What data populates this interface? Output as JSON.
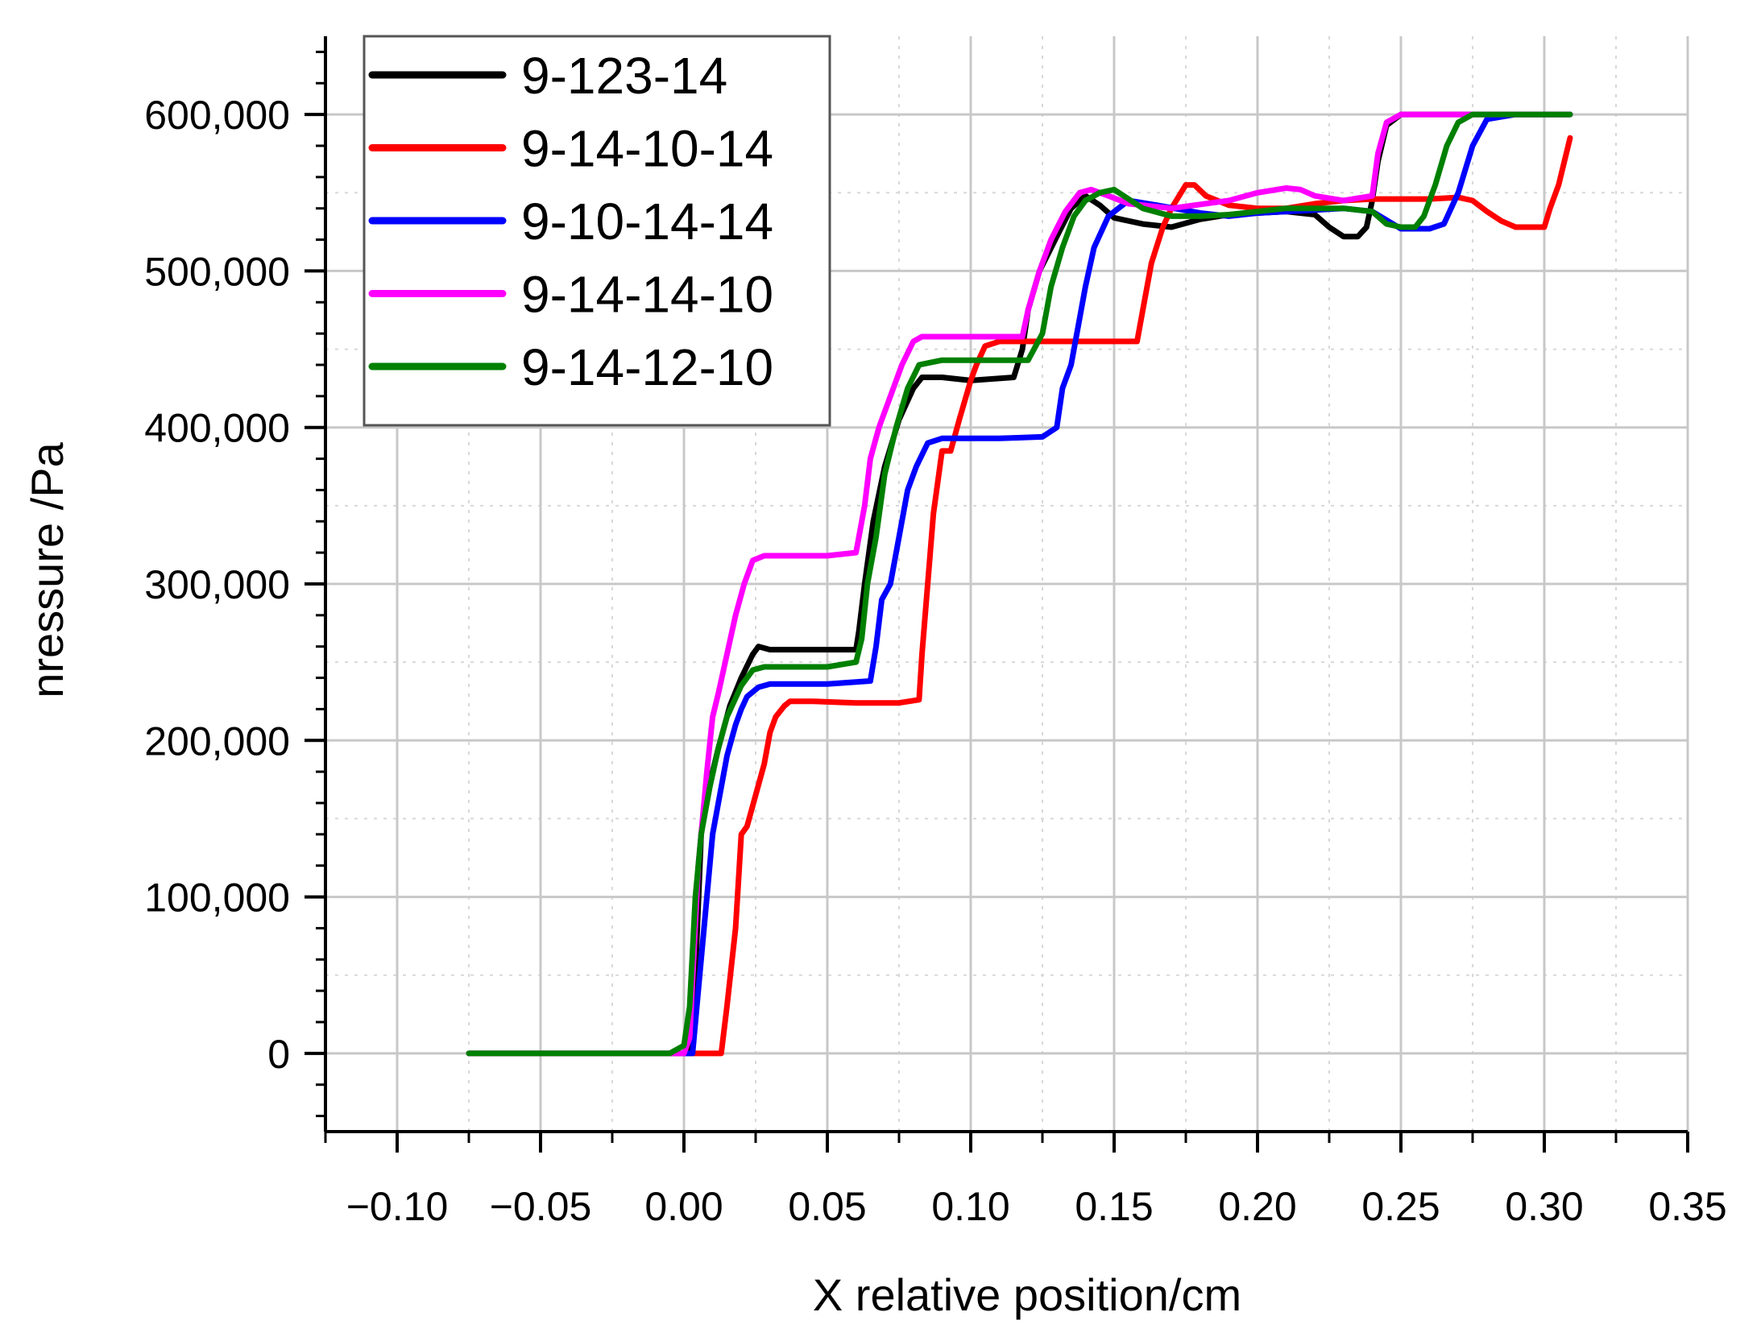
{
  "chart_data": {
    "type": "line",
    "title": "",
    "xlabel": "X relative position/cm",
    "ylabel": "nressure /Pa",
    "xlim": [
      -0.125,
      0.35
    ],
    "ylim": [
      -50000,
      650000
    ],
    "x_ticks": [
      -0.1,
      -0.05,
      0.0,
      0.05,
      0.1,
      0.15,
      0.2,
      0.25,
      0.3,
      0.35
    ],
    "x_tick_labels": [
      "−0.10",
      "−0.05",
      "0.00",
      "0.05",
      "0.10",
      "0.15",
      "0.20",
      "0.25",
      "0.30",
      "0.35"
    ],
    "y_ticks": [
      0,
      100000,
      200000,
      300000,
      400000,
      500000,
      600000
    ],
    "y_tick_labels": [
      "0",
      "100,000",
      "200,000",
      "300,000",
      "400,000",
      "500,000",
      "600,000"
    ],
    "grid": true,
    "legend_position": "top-left",
    "series": [
      {
        "name": "9-123-14",
        "color": "#000000",
        "x": [
          -0.075,
          0.0,
          0.002,
          0.004,
          0.006,
          0.008,
          0.012,
          0.016,
          0.02,
          0.024,
          0.026,
          0.03,
          0.045,
          0.06,
          0.061,
          0.063,
          0.066,
          0.07,
          0.075,
          0.08,
          0.083,
          0.09,
          0.1,
          0.115,
          0.118,
          0.12,
          0.124,
          0.13,
          0.135,
          0.14,
          0.145,
          0.15,
          0.16,
          0.17,
          0.18,
          0.19,
          0.2,
          0.21,
          0.22,
          0.225,
          0.23,
          0.235,
          0.238,
          0.24,
          0.242,
          0.245,
          0.25,
          0.26,
          0.27,
          0.28,
          0.29,
          0.3,
          0.309
        ],
        "y": [
          0,
          0,
          3000,
          50000,
          140000,
          165000,
          195000,
          222000,
          240000,
          255000,
          260000,
          258000,
          258000,
          258000,
          270000,
          300000,
          340000,
          375000,
          405000,
          425000,
          432000,
          432000,
          430000,
          432000,
          450000,
          475000,
          500000,
          522000,
          540000,
          548000,
          542000,
          534000,
          530000,
          528000,
          533000,
          536000,
          537000,
          538000,
          536000,
          528000,
          522000,
          522000,
          528000,
          545000,
          570000,
          593000,
          600000,
          600000,
          600000,
          600000,
          600000,
          600000,
          600000
        ]
      },
      {
        "name": "9-14-10-14",
        "color": "#ff0000",
        "x": [
          0.0,
          0.013,
          0.015,
          0.018,
          0.02,
          0.022,
          0.025,
          0.028,
          0.03,
          0.032,
          0.035,
          0.037,
          0.045,
          0.06,
          0.075,
          0.082,
          0.083,
          0.085,
          0.087,
          0.09,
          0.093,
          0.096,
          0.1,
          0.102,
          0.105,
          0.11,
          0.12,
          0.15,
          0.158,
          0.16,
          0.163,
          0.167,
          0.17,
          0.175,
          0.178,
          0.182,
          0.186,
          0.19,
          0.2,
          0.21,
          0.22,
          0.23,
          0.24,
          0.25,
          0.26,
          0.27,
          0.275,
          0.28,
          0.285,
          0.29,
          0.295,
          0.3,
          0.302,
          0.305,
          0.309
        ],
        "y": [
          0,
          0,
          30000,
          80000,
          140000,
          145000,
          165000,
          185000,
          205000,
          215000,
          222000,
          225000,
          225000,
          224000,
          224000,
          226000,
          255000,
          300000,
          345000,
          385000,
          385000,
          405000,
          430000,
          440000,
          452000,
          455000,
          455000,
          455000,
          455000,
          475000,
          505000,
          528000,
          540000,
          555000,
          555000,
          548000,
          545000,
          542000,
          540000,
          540000,
          543000,
          545000,
          546000,
          546000,
          546000,
          547000,
          545000,
          538000,
          532000,
          528000,
          528000,
          528000,
          540000,
          555000,
          585000
        ]
      },
      {
        "name": "9-10-14-14",
        "color": "#0000ff",
        "x": [
          0.0,
          0.003,
          0.005,
          0.008,
          0.01,
          0.012,
          0.015,
          0.018,
          0.02,
          0.022,
          0.026,
          0.03,
          0.04,
          0.05,
          0.065,
          0.067,
          0.069,
          0.072,
          0.075,
          0.078,
          0.081,
          0.085,
          0.09,
          0.1,
          0.11,
          0.125,
          0.13,
          0.132,
          0.135,
          0.138,
          0.14,
          0.143,
          0.148,
          0.155,
          0.165,
          0.18,
          0.19,
          0.2,
          0.21,
          0.22,
          0.23,
          0.24,
          0.25,
          0.26,
          0.265,
          0.27,
          0.275,
          0.28,
          0.29,
          0.3,
          0.309
        ],
        "y": [
          0,
          0,
          40000,
          100000,
          140000,
          160000,
          190000,
          210000,
          220000,
          228000,
          234000,
          236000,
          236000,
          236000,
          238000,
          260000,
          290000,
          300000,
          330000,
          360000,
          375000,
          390000,
          393000,
          393000,
          393000,
          394000,
          400000,
          425000,
          440000,
          470000,
          490000,
          515000,
          535000,
          545000,
          542000,
          537000,
          535000,
          537000,
          538000,
          539000,
          540000,
          538000,
          527000,
          527000,
          530000,
          550000,
          580000,
          597000,
          600000,
          600000,
          600000
        ]
      },
      {
        "name": "9-14-14-10",
        "color": "#ff00ff",
        "x": [
          -0.075,
          0.0,
          0.002,
          0.005,
          0.008,
          0.01,
          0.012,
          0.015,
          0.018,
          0.021,
          0.024,
          0.028,
          0.035,
          0.05,
          0.06,
          0.063,
          0.065,
          0.068,
          0.072,
          0.076,
          0.08,
          0.083,
          0.09,
          0.1,
          0.118,
          0.12,
          0.124,
          0.128,
          0.133,
          0.138,
          0.142,
          0.148,
          0.155,
          0.17,
          0.19,
          0.2,
          0.21,
          0.215,
          0.22,
          0.23,
          0.24,
          0.242,
          0.245,
          0.25,
          0.26,
          0.27,
          0.28,
          0.29,
          0.3,
          0.309
        ],
        "y": [
          0,
          0,
          10000,
          120000,
          180000,
          215000,
          230000,
          255000,
          280000,
          300000,
          315000,
          318000,
          318000,
          318000,
          320000,
          350000,
          380000,
          400000,
          420000,
          440000,
          455000,
          458000,
          458000,
          458000,
          458000,
          475000,
          500000,
          520000,
          538000,
          550000,
          552000,
          548000,
          543000,
          540000,
          545000,
          550000,
          553000,
          552000,
          548000,
          545000,
          548000,
          575000,
          595000,
          600000,
          600000,
          600000,
          600000,
          600000,
          600000,
          600000
        ]
      },
      {
        "name": "9-14-12-10",
        "color": "#008000",
        "x": [
          -0.075,
          -0.005,
          0.0,
          0.002,
          0.004,
          0.006,
          0.009,
          0.012,
          0.015,
          0.02,
          0.024,
          0.028,
          0.04,
          0.05,
          0.06,
          0.062,
          0.064,
          0.067,
          0.07,
          0.074,
          0.078,
          0.082,
          0.09,
          0.1,
          0.12,
          0.125,
          0.128,
          0.132,
          0.136,
          0.14,
          0.145,
          0.15,
          0.16,
          0.17,
          0.18,
          0.19,
          0.2,
          0.21,
          0.22,
          0.23,
          0.24,
          0.245,
          0.25,
          0.255,
          0.258,
          0.262,
          0.266,
          0.27,
          0.275,
          0.28,
          0.29,
          0.3,
          0.309
        ],
        "y": [
          0,
          0,
          5000,
          30000,
          100000,
          140000,
          170000,
          195000,
          215000,
          235000,
          245000,
          247000,
          247000,
          247000,
          250000,
          265000,
          300000,
          330000,
          370000,
          400000,
          425000,
          440000,
          443000,
          443000,
          443000,
          460000,
          490000,
          515000,
          535000,
          545000,
          550000,
          552000,
          540000,
          535000,
          535000,
          536000,
          538000,
          540000,
          540000,
          540000,
          538000,
          530000,
          528000,
          528000,
          535000,
          555000,
          580000,
          595000,
          600000,
          600000,
          600000,
          600000,
          600000
        ]
      }
    ]
  }
}
